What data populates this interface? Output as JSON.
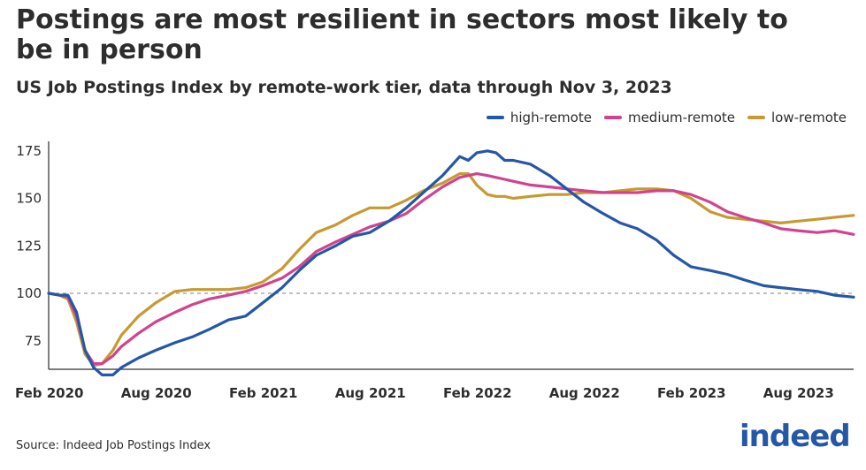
{
  "header": {
    "title": "Postings are most resilient in sectors most likely to be in person",
    "subtitle": "US Job Postings Index by remote-work tier, data through Nov 3, 2023"
  },
  "footer": {
    "source": "Source: Indeed Job Postings Index",
    "logo_text": "indeed"
  },
  "colors": {
    "high_remote": "#2557a7",
    "medium_remote": "#d0438f",
    "low_remote": "#c69a30",
    "baseline": "#9a9a9a",
    "axis": "#2d2d2d"
  },
  "chart_data": {
    "type": "line",
    "title": "Postings are most resilient in sectors most likely to be in person",
    "subtitle": "US Job Postings Index by remote-work tier, data through Nov 3, 2023",
    "xlabel": "",
    "ylabel": "",
    "xlim": [
      2020.08,
      2023.84
    ],
    "ylim": [
      60,
      180
    ],
    "yticks": [
      75,
      100,
      125,
      150,
      175
    ],
    "xticks": [
      {
        "t": 2020.083,
        "label": "Feb 2020"
      },
      {
        "t": 2020.583,
        "label": "Aug 2020"
      },
      {
        "t": 2021.083,
        "label": "Feb 2021"
      },
      {
        "t": 2021.583,
        "label": "Aug 2021"
      },
      {
        "t": 2022.083,
        "label": "Feb 2022"
      },
      {
        "t": 2022.583,
        "label": "Aug 2022"
      },
      {
        "t": 2023.083,
        "label": "Feb 2023"
      },
      {
        "t": 2023.583,
        "label": "Aug 2023"
      }
    ],
    "baseline": 100,
    "legend_position": "top-right",
    "series": [
      {
        "name": "high-remote",
        "color": "#2557a7",
        "t": [
          2020.08,
          2020.13,
          2020.17,
          2020.21,
          2020.25,
          2020.29,
          2020.33,
          2020.38,
          2020.42,
          2020.5,
          2020.58,
          2020.67,
          2020.75,
          2020.83,
          2020.92,
          2021.0,
          2021.08,
          2021.17,
          2021.25,
          2021.33,
          2021.42,
          2021.5,
          2021.58,
          2021.67,
          2021.75,
          2021.83,
          2021.92,
          2022.0,
          2022.04,
          2022.08,
          2022.13,
          2022.17,
          2022.21,
          2022.25,
          2022.33,
          2022.42,
          2022.5,
          2022.58,
          2022.67,
          2022.75,
          2022.83,
          2022.92,
          2023.0,
          2023.08,
          2023.17,
          2023.25,
          2023.33,
          2023.42,
          2023.5,
          2023.58,
          2023.67,
          2023.75,
          2023.84
        ],
        "values": [
          100,
          99,
          99,
          90,
          70,
          61,
          57,
          57,
          61,
          66,
          70,
          74,
          77,
          81,
          86,
          88,
          95,
          103,
          112,
          120,
          125,
          130,
          132,
          138,
          145,
          153,
          162,
          172,
          170,
          174,
          175,
          174,
          170,
          170,
          168,
          162,
          155,
          148,
          142,
          137,
          134,
          128,
          120,
          114,
          112,
          110,
          107,
          104,
          103,
          102,
          101,
          99,
          98
        ]
      },
      {
        "name": "medium-remote",
        "color": "#d0438f",
        "t": [
          2020.08,
          2020.13,
          2020.17,
          2020.21,
          2020.25,
          2020.29,
          2020.33,
          2020.38,
          2020.42,
          2020.5,
          2020.58,
          2020.67,
          2020.75,
          2020.83,
          2020.92,
          2021.0,
          2021.08,
          2021.17,
          2021.25,
          2021.33,
          2021.42,
          2021.5,
          2021.58,
          2021.67,
          2021.75,
          2021.83,
          2021.92,
          2022.0,
          2022.04,
          2022.08,
          2022.13,
          2022.17,
          2022.21,
          2022.25,
          2022.33,
          2022.42,
          2022.5,
          2022.58,
          2022.67,
          2022.75,
          2022.83,
          2022.92,
          2023.0,
          2023.08,
          2023.17,
          2023.25,
          2023.33,
          2023.42,
          2023.5,
          2023.58,
          2023.67,
          2023.75,
          2023.84
        ],
        "values": [
          100,
          99,
          98,
          88,
          70,
          63,
          63,
          67,
          72,
          79,
          85,
          90,
          94,
          97,
          99,
          101,
          104,
          108,
          114,
          122,
          127,
          131,
          135,
          138,
          142,
          149,
          156,
          161,
          162,
          163,
          162,
          161,
          160,
          159,
          157,
          156,
          155,
          154,
          153,
          153,
          153,
          154,
          154,
          152,
          148,
          143,
          140,
          137,
          134,
          133,
          132,
          133,
          131
        ]
      },
      {
        "name": "low-remote",
        "color": "#c69a30",
        "t": [
          2020.08,
          2020.13,
          2020.17,
          2020.21,
          2020.25,
          2020.29,
          2020.33,
          2020.38,
          2020.42,
          2020.5,
          2020.58,
          2020.67,
          2020.75,
          2020.83,
          2020.92,
          2021.0,
          2021.08,
          2021.17,
          2021.25,
          2021.33,
          2021.42,
          2021.5,
          2021.58,
          2021.67,
          2021.75,
          2021.83,
          2021.92,
          2022.0,
          2022.04,
          2022.08,
          2022.13,
          2022.17,
          2022.21,
          2022.25,
          2022.33,
          2022.42,
          2022.5,
          2022.58,
          2022.67,
          2022.75,
          2022.83,
          2022.92,
          2023.0,
          2023.08,
          2023.17,
          2023.25,
          2023.33,
          2023.42,
          2023.5,
          2023.58,
          2023.67,
          2023.75,
          2023.84
        ],
        "values": [
          100,
          99,
          97,
          85,
          68,
          62,
          63,
          70,
          78,
          88,
          95,
          101,
          102,
          102,
          102,
          103,
          106,
          113,
          123,
          132,
          136,
          141,
          145,
          145,
          149,
          154,
          158,
          163,
          163,
          157,
          152,
          151,
          151,
          150,
          151,
          152,
          152,
          153,
          153,
          154,
          155,
          155,
          154,
          150,
          143,
          140,
          139,
          138,
          137,
          138,
          139,
          140,
          141
        ]
      }
    ]
  }
}
